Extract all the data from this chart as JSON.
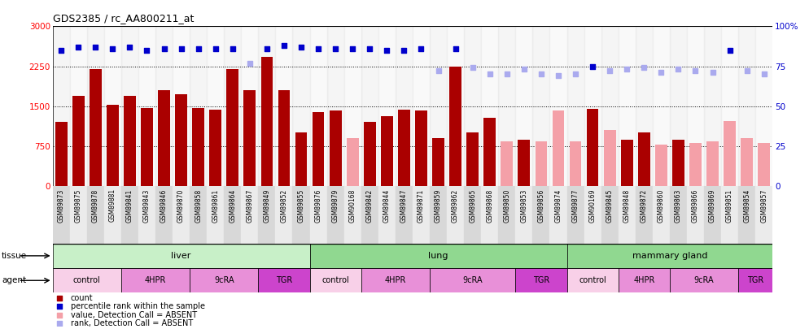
{
  "title": "GDS2385 / rc_AA800211_at",
  "samples": [
    "GSM89873",
    "GSM89875",
    "GSM89878",
    "GSM89881",
    "GSM89841",
    "GSM89843",
    "GSM89846",
    "GSM89870",
    "GSM89858",
    "GSM89861",
    "GSM89864",
    "GSM89867",
    "GSM89849",
    "GSM89852",
    "GSM89855",
    "GSM89876",
    "GSM89879",
    "GSM90168",
    "GSM89842",
    "GSM89844",
    "GSM89847",
    "GSM89871",
    "GSM89859",
    "GSM89862",
    "GSM89865",
    "GSM89868",
    "GSM89850",
    "GSM89853",
    "GSM89856",
    "GSM89874",
    "GSM89877",
    "GSM90169",
    "GSM89845",
    "GSM89848",
    "GSM89872",
    "GSM89860",
    "GSM89863",
    "GSM89866",
    "GSM89869",
    "GSM89851",
    "GSM89854",
    "GSM89857"
  ],
  "bar_heights": [
    1200,
    1700,
    2200,
    1530,
    1700,
    1460,
    1800,
    1720,
    1460,
    1440,
    2200,
    1800,
    2420,
    1800,
    1000,
    1380,
    1420,
    900,
    1200,
    1310,
    1430,
    1420,
    900,
    2250,
    1010,
    1280,
    840,
    870,
    840,
    1420,
    840,
    1450,
    1050,
    870,
    1010,
    780,
    870,
    800,
    840,
    1220,
    900,
    800
  ],
  "bar_is_present": [
    1,
    1,
    1,
    1,
    1,
    1,
    1,
    1,
    1,
    1,
    1,
    1,
    1,
    1,
    1,
    1,
    1,
    0,
    1,
    1,
    1,
    1,
    1,
    1,
    1,
    1,
    0,
    1,
    0,
    0,
    0,
    1,
    0,
    1,
    1,
    0,
    1,
    0,
    0,
    0,
    0,
    0
  ],
  "pct_values": [
    85,
    87,
    87,
    86,
    87,
    85,
    86,
    86,
    86,
    86,
    86,
    77,
    86,
    88,
    87,
    86,
    86,
    86,
    86,
    85,
    85,
    86,
    72,
    86,
    74,
    70,
    70,
    73,
    70,
    69,
    70,
    75,
    72,
    73,
    74,
    71,
    73,
    72,
    71,
    85,
    72,
    70
  ],
  "pct_is_present": [
    1,
    1,
    1,
    1,
    1,
    1,
    1,
    1,
    1,
    1,
    1,
    0,
    1,
    1,
    1,
    1,
    1,
    1,
    1,
    1,
    1,
    1,
    0,
    1,
    0,
    0,
    0,
    0,
    0,
    0,
    0,
    1,
    0,
    0,
    0,
    0,
    0,
    0,
    0,
    1,
    0,
    0
  ],
  "ylim_left": [
    0,
    3000
  ],
  "ylim_right": [
    0,
    100
  ],
  "yticks_left": [
    0,
    750,
    1500,
    2250,
    3000
  ],
  "yticks_right": [
    0,
    25,
    50,
    75,
    100
  ],
  "tissue_defs": [
    {
      "label": "liver",
      "start": 0,
      "end": 15,
      "color": "#C8F0C8"
    },
    {
      "label": "lung",
      "start": 15,
      "end": 30,
      "color": "#90D890"
    },
    {
      "label": "mammary gland",
      "start": 30,
      "end": 42,
      "color": "#90D890"
    }
  ],
  "agent_defs": [
    {
      "label": "control",
      "start": 0,
      "end": 4,
      "color": "#F8D0E8"
    },
    {
      "label": "4HPR",
      "start": 4,
      "end": 8,
      "color": "#E890D8"
    },
    {
      "label": "9cRA",
      "start": 8,
      "end": 12,
      "color": "#E890D8"
    },
    {
      "label": "TGR",
      "start": 12,
      "end": 15,
      "color": "#CC44CC"
    },
    {
      "label": "control",
      "start": 15,
      "end": 18,
      "color": "#F8D0E8"
    },
    {
      "label": "4HPR",
      "start": 18,
      "end": 22,
      "color": "#E890D8"
    },
    {
      "label": "9cRA",
      "start": 22,
      "end": 27,
      "color": "#E890D8"
    },
    {
      "label": "TGR",
      "start": 27,
      "end": 30,
      "color": "#CC44CC"
    },
    {
      "label": "control",
      "start": 30,
      "end": 33,
      "color": "#F8D0E8"
    },
    {
      "label": "4HPR",
      "start": 33,
      "end": 36,
      "color": "#E890D8"
    },
    {
      "label": "9cRA",
      "start": 36,
      "end": 40,
      "color": "#E890D8"
    },
    {
      "label": "TGR",
      "start": 40,
      "end": 42,
      "color": "#CC44CC"
    }
  ],
  "dark_red": "#AA0000",
  "pink": "#F4A0A8",
  "blue": "#0000CC",
  "lavender": "#AAAAEE",
  "bg_color": "#FFFFFF"
}
